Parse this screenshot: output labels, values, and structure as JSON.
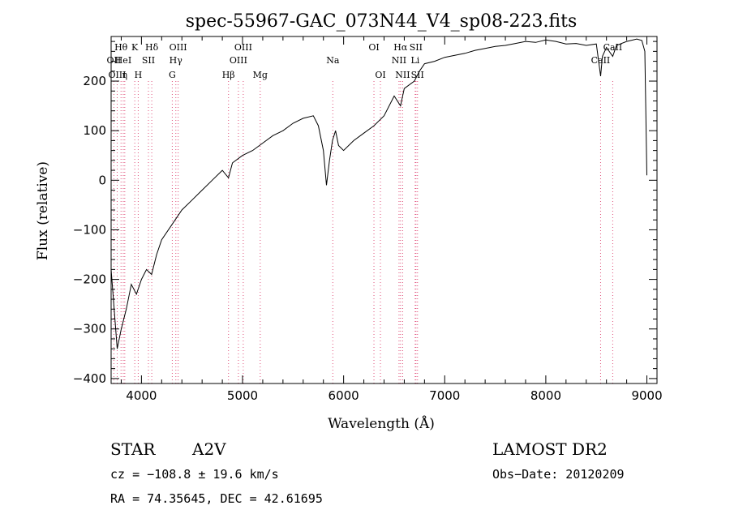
{
  "chart_data": {
    "type": "line",
    "title": "spec-55967-GAC_073N44_V4_sp08-223.fits",
    "xlabel": "Wavelength (Å)",
    "ylabel": "Flux (relative)",
    "xlim": [
      3700,
      9100
    ],
    "ylim": [
      -410,
      290
    ],
    "xticks": [
      4000,
      5000,
      6000,
      7000,
      8000,
      9000
    ],
    "yticks": [
      -400,
      -300,
      -200,
      -100,
      0,
      100,
      200
    ],
    "grid": false,
    "series": [
      {
        "x": [
          3700,
          3760,
          3800,
          3850,
          3900,
          3950,
          4000,
          4050,
          4100,
          4150,
          4200,
          4300,
          4400,
          4500,
          4600,
          4700,
          4800,
          4861,
          4900,
          5000,
          5100,
          5200,
          5300,
          5400,
          5500,
          5600,
          5700,
          5750,
          5800,
          5830,
          5860,
          5890,
          5920,
          5950,
          6000,
          6100,
          6200,
          6300,
          6400,
          6500,
          6563,
          6600,
          6700,
          6750,
          6800,
          6900,
          7000,
          7100,
          7200,
          7300,
          7400,
          7500,
          7600,
          7700,
          7800,
          7900,
          8000,
          8100,
          8200,
          8300,
          8400,
          8500,
          8542,
          8560,
          8600,
          8662,
          8700,
          8800,
          8900,
          8950,
          8980,
          9000
        ],
        "y": [
          -180,
          -340,
          -300,
          -260,
          -210,
          -230,
          -200,
          -180,
          -190,
          -150,
          -120,
          -90,
          -60,
          -40,
          -20,
          0,
          20,
          5,
          35,
          50,
          60,
          75,
          90,
          100,
          115,
          125,
          130,
          110,
          60,
          -10,
          40,
          80,
          100,
          70,
          60,
          80,
          95,
          110,
          130,
          170,
          150,
          185,
          200,
          220,
          235,
          240,
          248,
          252,
          256,
          262,
          266,
          270,
          272,
          276,
          280,
          278,
          283,
          280,
          275,
          276,
          272,
          275,
          210,
          250,
          268,
          250,
          272,
          280,
          285,
          282,
          260,
          10
        ]
      }
    ],
    "lines": [
      {
        "label": "Hθ",
        "x": 3798,
        "row": 0
      },
      {
        "label": "OII",
        "x": 3727,
        "row": 1
      },
      {
        "label": "OIII",
        "x": 3760,
        "row": 2
      },
      {
        "label": "HeI",
        "x": 3820,
        "row": 1
      },
      {
        "label": "η",
        "x": 3835,
        "row": 2
      },
      {
        "label": "K",
        "x": 3934,
        "row": 0
      },
      {
        "label": "SII",
        "x": 4069,
        "row": 1
      },
      {
        "label": "H",
        "x": 3968,
        "row": 2
      },
      {
        "label": "Hδ",
        "x": 4102,
        "row": 0
      },
      {
        "label": "OIII",
        "x": 4363,
        "row": 0
      },
      {
        "label": "Hγ",
        "x": 4340,
        "row": 1
      },
      {
        "label": "G",
        "x": 4305,
        "row": 2
      },
      {
        "label": "Hβ",
        "x": 4861,
        "row": 2
      },
      {
        "label": "OIII",
        "x": 5007,
        "row": 0
      },
      {
        "label": "OIII",
        "x": 4959,
        "row": 1
      },
      {
        "label": "Mg",
        "x": 5175,
        "row": 2
      },
      {
        "label": "Na",
        "x": 5893,
        "row": 1
      },
      {
        "label": "OI",
        "x": 6300,
        "row": 0
      },
      {
        "label": "OI",
        "x": 6364,
        "row": 2
      },
      {
        "label": "Hα",
        "x": 6563,
        "row": 0
      },
      {
        "label": "SII",
        "x": 6716,
        "row": 0
      },
      {
        "label": "NII",
        "x": 6548,
        "row": 1
      },
      {
        "label": "Li",
        "x": 6708,
        "row": 1
      },
      {
        "label": "NII",
        "x": 6584,
        "row": 2
      },
      {
        "label": "SII",
        "x": 6731,
        "row": 2
      },
      {
        "label": "CaII",
        "x": 8542,
        "row": 1
      },
      {
        "label": "CaII",
        "x": 8662,
        "row": 0
      }
    ]
  },
  "info": {
    "class": "STAR",
    "subclass": "A2V",
    "survey": "LAMOST DR2",
    "cz": "cz = −108.8 ± 19.6 km/s",
    "obs_date": "Obs−Date: 20120209",
    "coords": "RA =  74.35645, DEC =  42.61695"
  }
}
